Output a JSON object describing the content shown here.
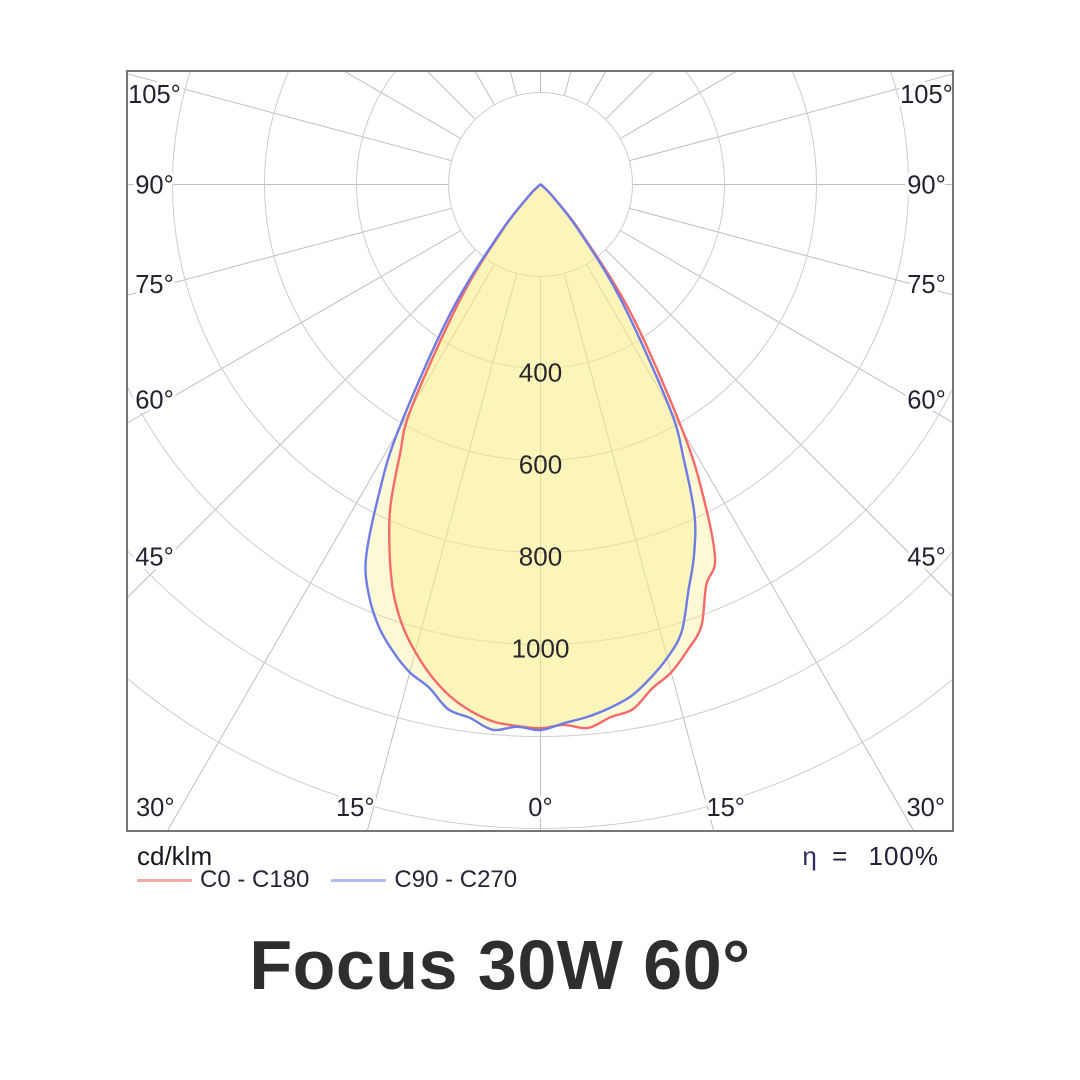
{
  "title": "Focus 30W 60°",
  "chart": {
    "unit_label": "cd/klm",
    "efficiency": {
      "symbol": "η",
      "equals": "=",
      "value": "100%"
    }
  },
  "legend": {
    "items": [
      {
        "label": "C0 - C180",
        "color": "#f4a9a9"
      },
      {
        "label": "C90 - C270",
        "color": "#b3bcf2"
      }
    ]
  },
  "chart_data": {
    "type": "polar-photometric",
    "title": "Focus 30W 60°",
    "radial_unit": "cd/klm",
    "efficiency": "100%",
    "beam_angle_deg": 60,
    "max_intensity_cd_per_klm": 1190,
    "radial_axis": {
      "ring_step": 200,
      "max_ring": 1400,
      "labeled_rings": [
        400,
        600,
        800,
        1000
      ]
    },
    "angle_step_deg": 15,
    "angle_labels": [
      {
        "text": "105°",
        "gamma": 105,
        "side": "left"
      },
      {
        "text": "90°",
        "gamma": 90,
        "side": "left"
      },
      {
        "text": "75°",
        "gamma": 75,
        "side": "left"
      },
      {
        "text": "60°",
        "gamma": 60,
        "side": "left"
      },
      {
        "text": "45°",
        "gamma": 45,
        "side": "left"
      },
      {
        "text": "30°",
        "gamma": 30,
        "side": "left"
      },
      {
        "text": "15°",
        "gamma": 15,
        "side": "left"
      },
      {
        "text": "0°",
        "gamma": 0,
        "side": "center"
      },
      {
        "text": "15°",
        "gamma": 15,
        "side": "right"
      },
      {
        "text": "30°",
        "gamma": 30,
        "side": "right"
      },
      {
        "text": "45°",
        "gamma": 45,
        "side": "right"
      },
      {
        "text": "60°",
        "gamma": 60,
        "side": "right"
      },
      {
        "text": "75°",
        "gamma": 75,
        "side": "right"
      },
      {
        "text": "90°",
        "gamma": 90,
        "side": "right"
      },
      {
        "text": "105°",
        "gamma": 105,
        "side": "right"
      }
    ],
    "series": [
      {
        "name": "C0 - C180",
        "color": "#f76a6a",
        "fill": "rgba(249,239,135,0.35)",
        "gamma_deg": [
          -60,
          -55,
          -50,
          -45,
          -40,
          -35,
          -30,
          -27.5,
          -25,
          -22.5,
          -20,
          -17.5,
          -15,
          -12.5,
          -10,
          -7.5,
          -5,
          -2.5,
          0,
          2.5,
          5,
          7.5,
          10,
          12.5,
          15,
          17.5,
          20,
          22.5,
          25,
          27.5,
          30,
          35,
          40,
          45,
          50,
          55,
          60
        ],
        "cd_per_klm": [
          1,
          3,
          11,
          40,
          125,
          302,
          562,
          662,
          772,
          858,
          938,
          1002,
          1052,
          1095,
          1130,
          1155,
          1172,
          1178,
          1182,
          1176,
          1186,
          1168,
          1158,
          1122,
          1098,
          1062,
          1022,
          942,
          898,
          768,
          618,
          345,
          138,
          45,
          12,
          4,
          2
        ]
      },
      {
        "name": "C90 - C270",
        "color": "#6f7ce8",
        "fill": "rgba(249,239,135,0.35)",
        "gamma_deg": [
          -60,
          -55,
          -50,
          -45,
          -40,
          -35,
          -30,
          -27.5,
          -25,
          -22.5,
          -20,
          -17.5,
          -15,
          -12.5,
          -10,
          -7.5,
          -5,
          -2.5,
          0,
          2.5,
          5,
          7.5,
          10,
          12.5,
          15,
          17.5,
          20,
          22.5,
          25,
          27.5,
          30,
          35,
          40,
          45,
          50,
          55,
          60
        ],
        "cd_per_klm": [
          1,
          3,
          10,
          38,
          135,
          340,
          620,
          762,
          898,
          972,
          1025,
          1065,
          1098,
          1120,
          1158,
          1170,
          1190,
          1180,
          1186,
          1172,
          1162,
          1148,
          1130,
          1100,
          1065,
          1020,
          940,
          872,
          792,
          675,
          562,
          302,
          125,
          40,
          11,
          3,
          1
        ]
      }
    ],
    "layout": {
      "grid": true,
      "legend_position": "bottom-left",
      "origin_at_top": true,
      "rays_full_circle": true
    }
  }
}
